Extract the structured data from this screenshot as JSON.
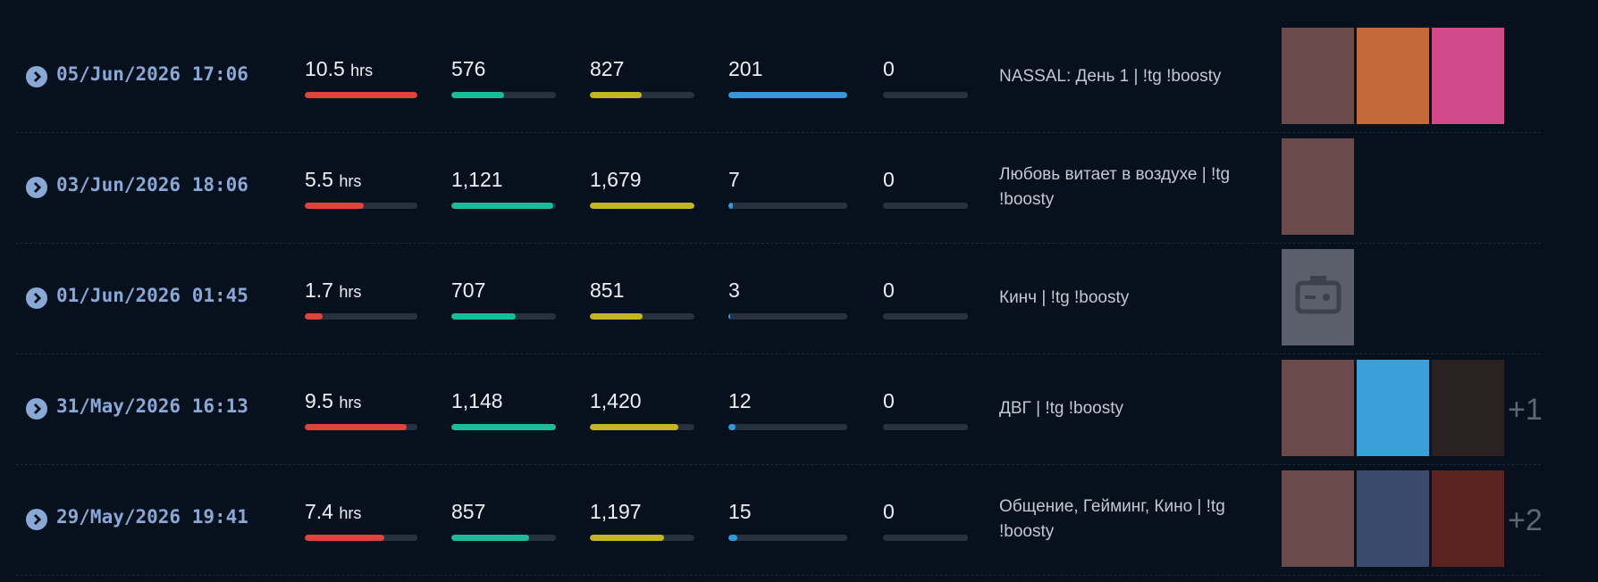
{
  "hours_unit": "hrs",
  "rows": [
    {
      "date": "05/Jun/2026 17:06",
      "hours": 10.5,
      "a": 576,
      "b": 827,
      "c": 201,
      "d": 0,
      "title": "NASSAL: День 1 | !tg !boosty"
    },
    {
      "date": "03/Jun/2026 18:06",
      "hours": 5.5,
      "a": {
        "value": 1121,
        "label": "1,121"
      },
      "b": {
        "value": 1679,
        "label": "1,679"
      },
      "c": 7,
      "d": 0,
      "title": "Любовь витает в воздухе | !tg !boosty"
    },
    {
      "date": "01/Jun/2026 01:45",
      "hours": 1.7,
      "a": 707,
      "b": 851,
      "c": 3,
      "d": 0,
      "title": "Кинч | !tg !boosty"
    },
    {
      "date": "31/May/2026 16:13",
      "hours": 9.5,
      "a": {
        "value": 1148,
        "label": "1,148"
      },
      "b": {
        "value": 1420,
        "label": "1,420"
      },
      "c": 12,
      "d": 0,
      "title": "ДВГ | !tg !boosty",
      "more": "+1"
    },
    {
      "date": "29/May/2026 19:41",
      "hours": 7.4,
      "a": 857,
      "b": {
        "value": 1197,
        "label": "1,197"
      },
      "c": 15,
      "d": 0,
      "title": "Общение, Гейминг, Кино | !tg !boosty",
      "more": "+2"
    }
  ]
}
